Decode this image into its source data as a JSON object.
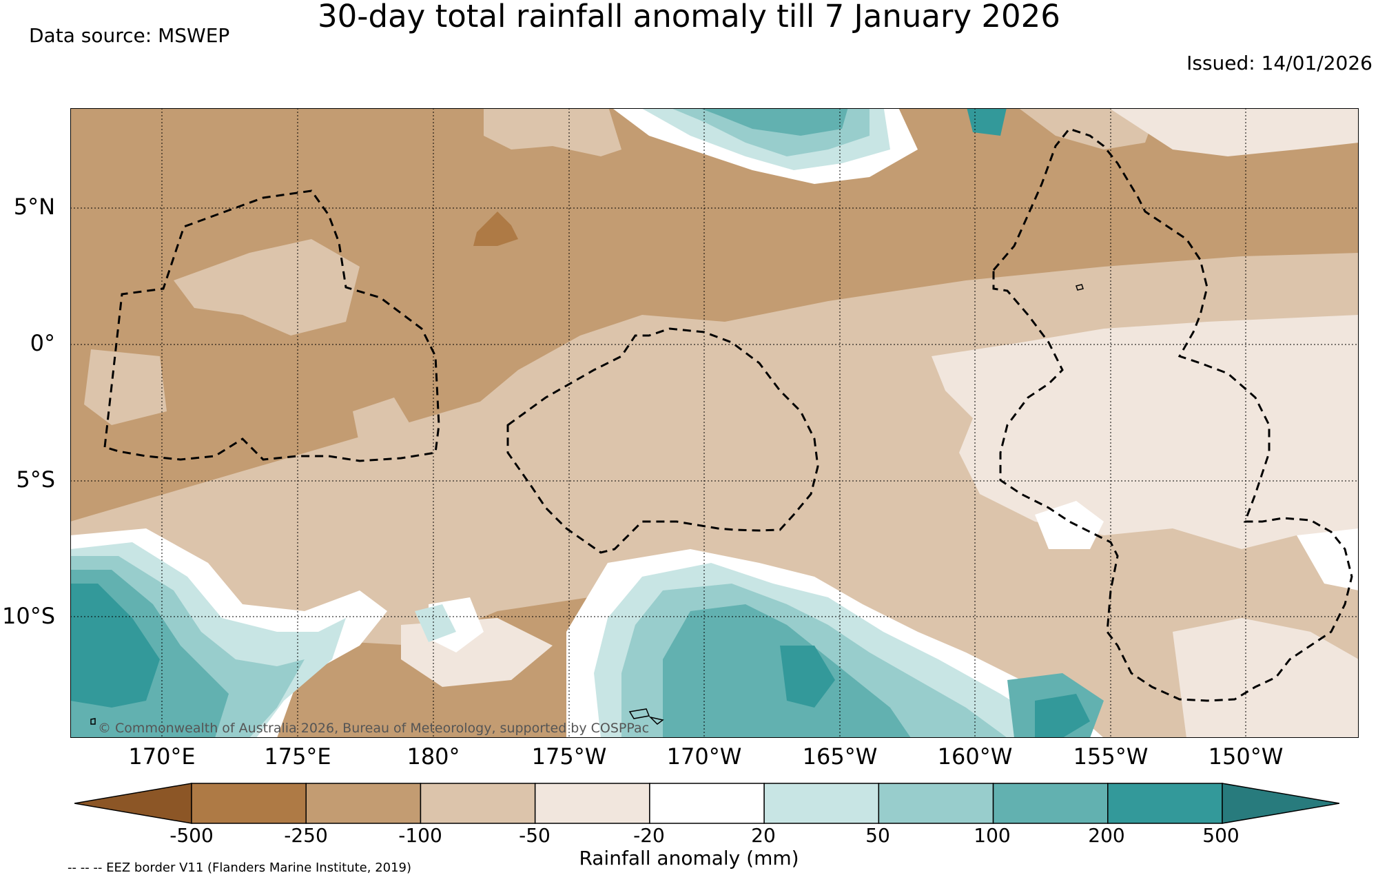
{
  "header": {
    "title": "30-day total rainfall anomaly till 7 January 2026",
    "data_source": "Data source: MSWEP",
    "issued": "Issued: 14/01/2026"
  },
  "map": {
    "latitude_labels": [
      "5°N",
      "0°",
      "5°S",
      "10°S"
    ],
    "longitude_labels": [
      "170°E",
      "175°E",
      "180°",
      "175°W",
      "170°W",
      "165°W",
      "160°W",
      "155°W",
      "150°W"
    ],
    "copyright": "© Commonwealth of Australia 2026, Bureau of Meteorology, supported by COSPPac",
    "eez_border_style": "dashed",
    "gridlines": "dotted"
  },
  "colorbar": {
    "label": "Rainfall anomaly (mm)",
    "ticks": [
      "-500",
      "-250",
      "-100",
      "-50",
      "-20",
      "20",
      "50",
      "100",
      "200",
      "500"
    ],
    "colors": [
      "#8c5626",
      "#ae7a45",
      "#c39c72",
      "#dcc4ab",
      "#f1e6dd",
      "#ffffff",
      "#c8e5e4",
      "#98cdcc",
      "#62b1b0",
      "#33999a",
      "#287b7d"
    ]
  },
  "legend": {
    "eez_note": "-- -- -- EEZ border V11 (Flanders Marine Institute, 2019)"
  }
}
